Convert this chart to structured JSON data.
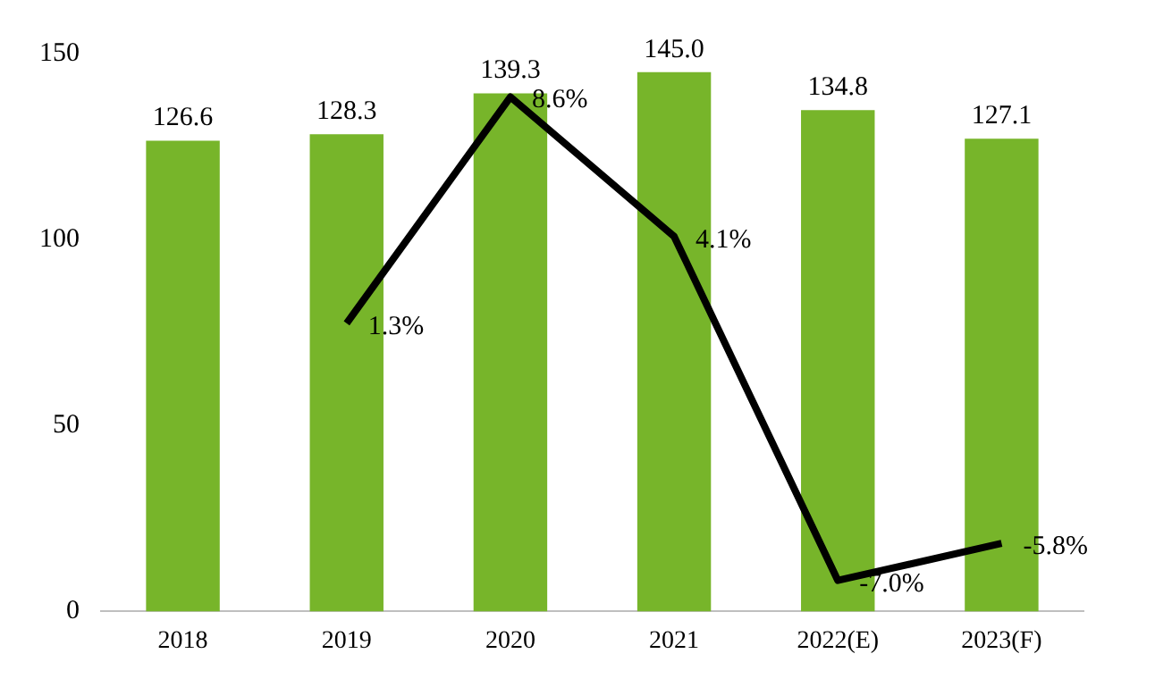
{
  "chart_data": {
    "type": "bar",
    "categories": [
      "2018",
      "2019",
      "2020",
      "2021",
      "2022(E)",
      "2023(F)"
    ],
    "series": [
      {
        "color": "#77b52a",
        "values": [
          126.6,
          128.3,
          139.3,
          145.0,
          134.8,
          127.1
        ],
        "value_labels": [
          "126.6",
          "128.3",
          "139.3",
          "145.0",
          "134.8",
          "127.1"
        ]
      },
      {
        "type": "line",
        "axis": "y2",
        "color": "#000000",
        "values": [
          null,
          1.3,
          8.6,
          4.1,
          -7.0,
          -5.8
        ],
        "value_labels": [
          null,
          "1.3%",
          "8.6%",
          "4.1%",
          "-7.0%",
          "-5.8%"
        ]
      }
    ],
    "ylim": [
      0,
      150
    ],
    "yticks": [
      0,
      50,
      100,
      150
    ],
    "grid": false,
    "legend": false,
    "marker": "none",
    "line_style": "solid"
  }
}
